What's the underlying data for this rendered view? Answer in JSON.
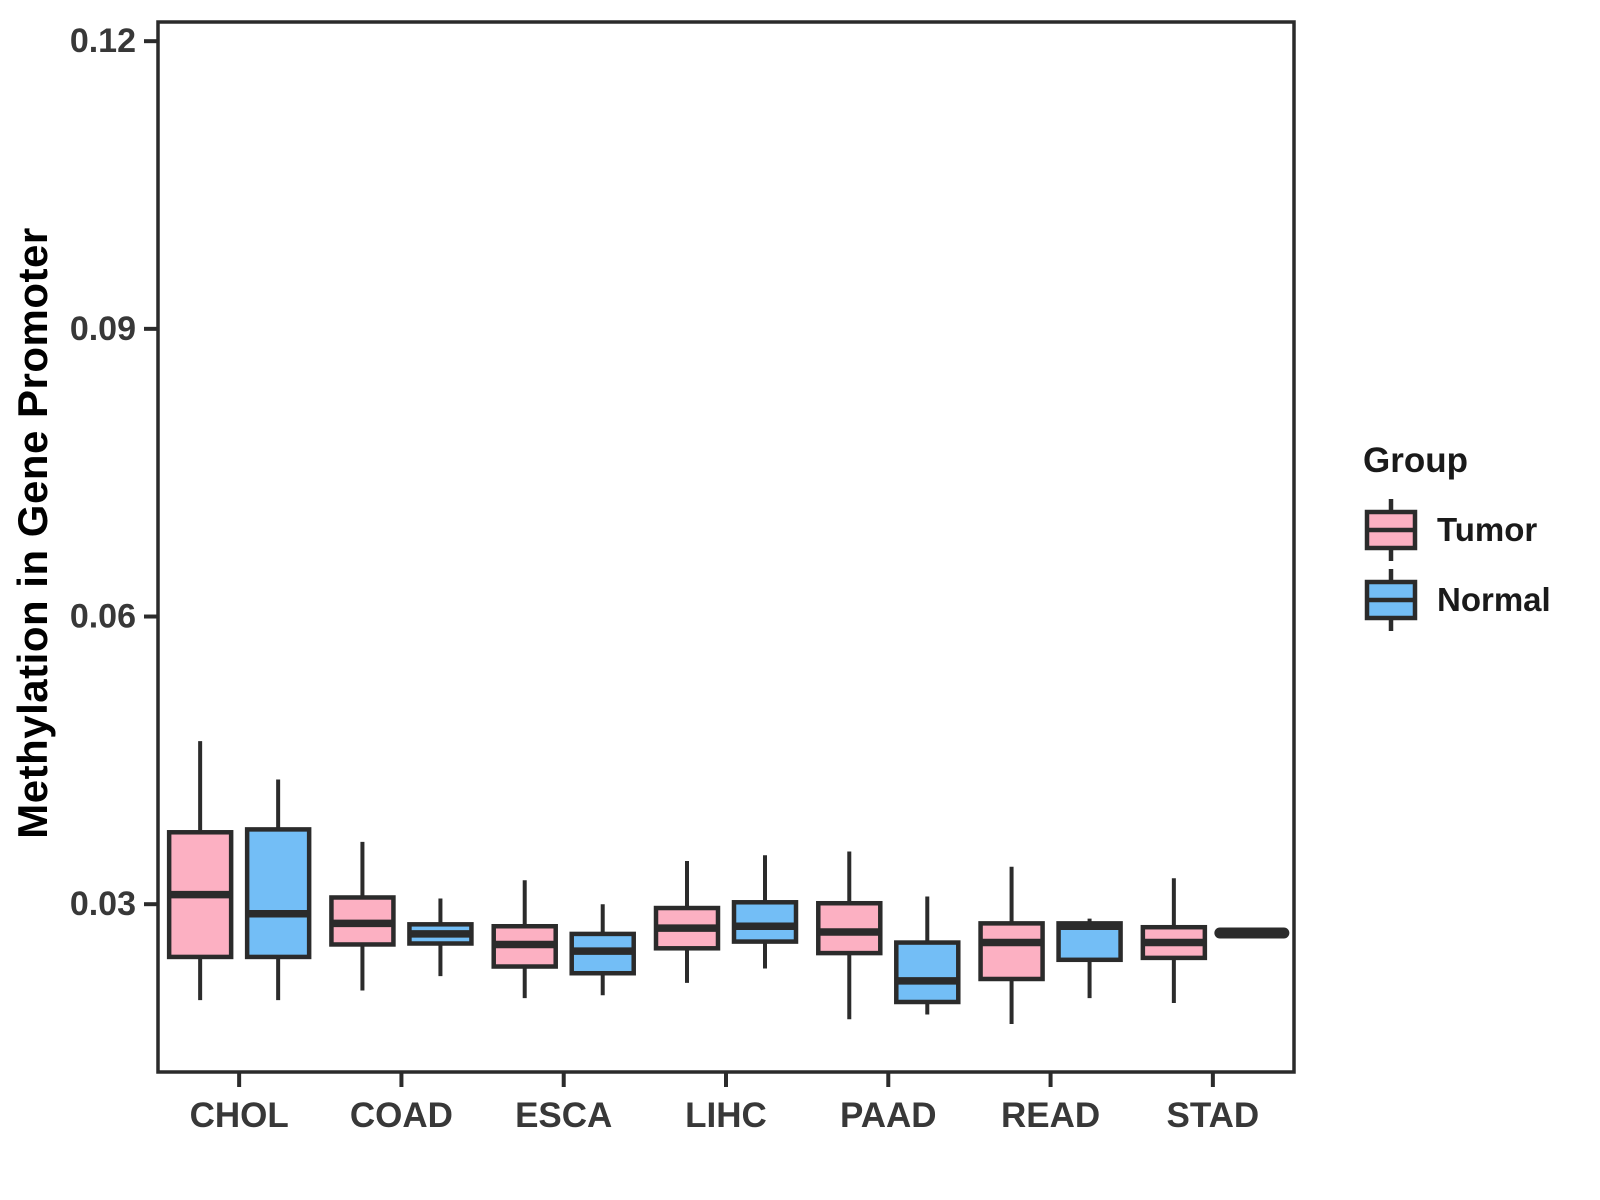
{
  "chart_data": {
    "type": "boxplot",
    "title": "",
    "xlabel": "",
    "ylabel": "Methylation in Gene Promoter",
    "categories": [
      "CHOL",
      "COAD",
      "ESCA",
      "LIHC",
      "PAAD",
      "READ",
      "STAD"
    ],
    "y_ticks": [
      "0.03",
      "0.06",
      "0.09",
      "0.12"
    ],
    "y_tick_values": [
      0.03,
      0.06,
      0.09,
      0.12
    ],
    "ylim": [
      0.0125,
      0.122
    ],
    "grid": "off",
    "legend": {
      "title": "Group",
      "position": "right",
      "entries": [
        {
          "label": "Tumor",
          "color": "#FCB0C2"
        },
        {
          "label": "Normal",
          "color": "#73BEF6"
        }
      ]
    },
    "colors": {
      "tumor_fill": "#FCB0C2",
      "normal_fill": "#73BEF6",
      "box_stroke": "#2B2B2B",
      "panel_border": "#2B2B2B",
      "axis_text": "#383838"
    },
    "series": [
      {
        "name": "Tumor",
        "color": "#FCB0C2",
        "boxes": [
          {
            "category": "CHOL",
            "low": 0.02,
            "q1": 0.0245,
            "median": 0.031,
            "q3": 0.0375,
            "high": 0.047
          },
          {
            "category": "COAD",
            "low": 0.021,
            "q1": 0.0258,
            "median": 0.028,
            "q3": 0.0307,
            "high": 0.0365
          },
          {
            "category": "ESCA",
            "low": 0.0202,
            "q1": 0.0235,
            "median": 0.0258,
            "q3": 0.0277,
            "high": 0.0325
          },
          {
            "category": "LIHC",
            "low": 0.0218,
            "q1": 0.0254,
            "median": 0.0275,
            "q3": 0.0296,
            "high": 0.0345
          },
          {
            "category": "PAAD",
            "low": 0.018,
            "q1": 0.0249,
            "median": 0.0271,
            "q3": 0.0301,
            "high": 0.0355
          },
          {
            "category": "READ",
            "low": 0.0175,
            "q1": 0.0222,
            "median": 0.026,
            "q3": 0.028,
            "high": 0.0339
          },
          {
            "category": "STAD",
            "low": 0.0197,
            "q1": 0.0244,
            "median": 0.026,
            "q3": 0.0276,
            "high": 0.0327
          }
        ]
      },
      {
        "name": "Normal",
        "color": "#73BEF6",
        "boxes": [
          {
            "category": "CHOL",
            "low": 0.02,
            "q1": 0.0245,
            "median": 0.029,
            "q3": 0.0378,
            "high": 0.043
          },
          {
            "category": "COAD",
            "low": 0.0225,
            "q1": 0.0259,
            "median": 0.0269,
            "q3": 0.0279,
            "high": 0.0306
          },
          {
            "category": "ESCA",
            "low": 0.0205,
            "q1": 0.0228,
            "median": 0.0251,
            "q3": 0.0269,
            "high": 0.03
          },
          {
            "category": "LIHC",
            "low": 0.0233,
            "q1": 0.0261,
            "median": 0.0277,
            "q3": 0.0302,
            "high": 0.0351
          },
          {
            "category": "PAAD",
            "low": 0.0185,
            "q1": 0.0198,
            "median": 0.022,
            "q3": 0.026,
            "high": 0.0308
          },
          {
            "category": "READ",
            "low": 0.0202,
            "q1": 0.0242,
            "median": 0.0277,
            "q3": 0.028,
            "high": 0.0285
          },
          {
            "category": "STAD",
            "low": 0.027,
            "q1": 0.027,
            "median": 0.027,
            "q3": 0.027,
            "high": 0.027
          }
        ]
      }
    ]
  }
}
